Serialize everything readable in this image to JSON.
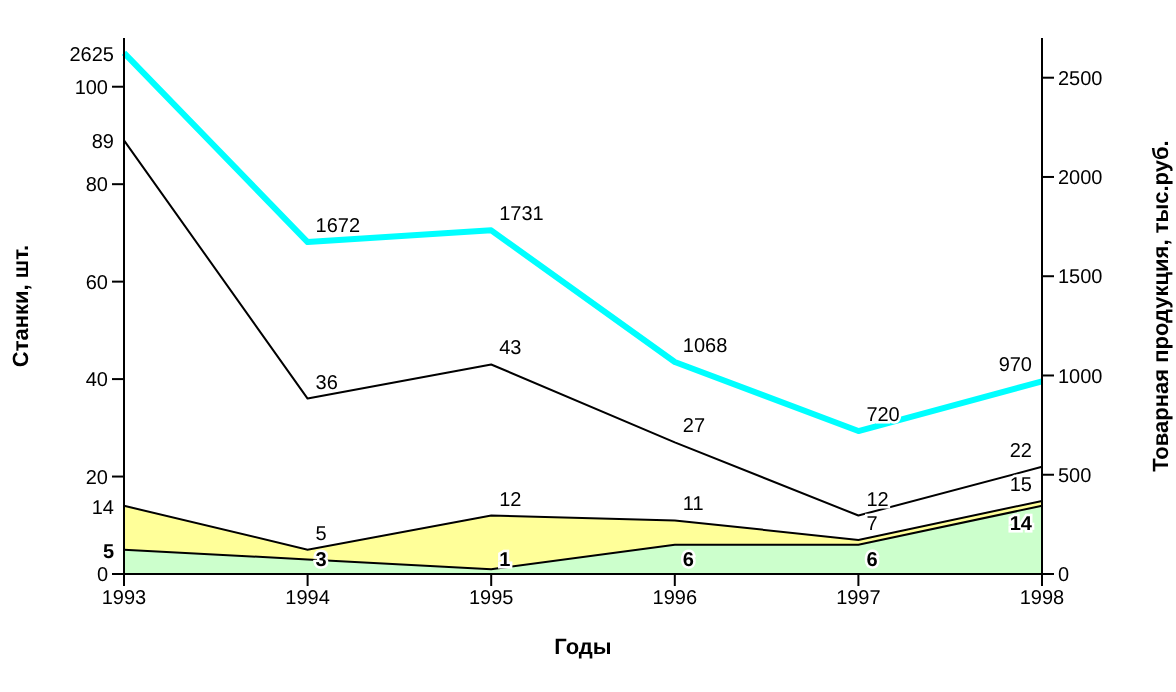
{
  "chart_data": {
    "type": "line",
    "xlabel": "Годы",
    "ylabel": "Станки, шт.",
    "y2label": "Товарная продукция, тыс.руб.",
    "categories": [
      "1993",
      "1994",
      "1995",
      "1996",
      "1997",
      "1998"
    ],
    "series": [
      {
        "type": "area",
        "color": "#ffff99",
        "values": [
          14,
          5,
          12,
          11,
          7,
          15
        ]
      },
      {
        "type": "area",
        "color": "#ccffcc",
        "values": [
          5,
          3,
          1,
          6,
          6,
          14
        ]
      },
      {
        "color": "#000000",
        "values": [
          89,
          36,
          43,
          27,
          12,
          22
        ]
      },
      {
        "axis": "y2",
        "color": "#00ffff",
        "values": [
          2625,
          1672,
          1731,
          1068,
          720,
          970
        ]
      }
    ],
    "ylim": [
      0,
      110
    ],
    "yticks": [
      0,
      20,
      40,
      60,
      80,
      100
    ],
    "y2lim": [
      0,
      2700
    ],
    "y2ticks": [
      0,
      500,
      1000,
      1500,
      2000,
      2500
    ],
    "data_labels": true,
    "grid": false,
    "legend": false,
    "marker": "none",
    "line_style": "solid"
  }
}
